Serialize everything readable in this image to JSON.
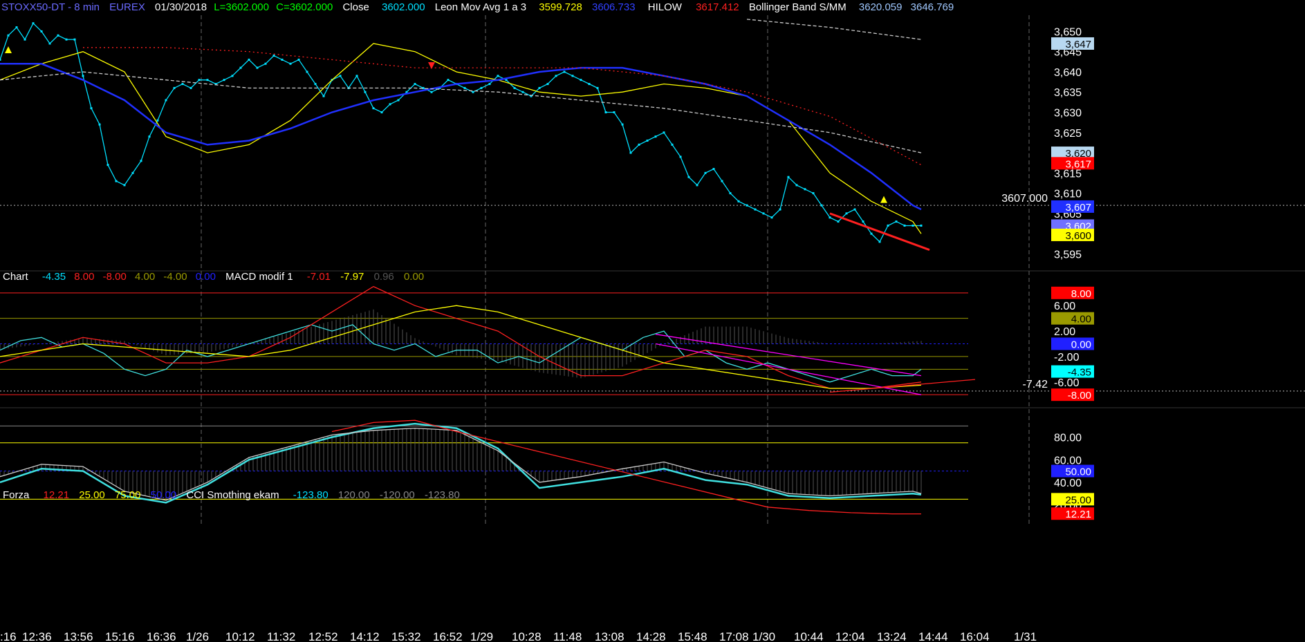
{
  "colors": {
    "bg": "#000000",
    "price": "#00e0ff",
    "priceLine": "#6a6aff",
    "yellow": "#ffff00",
    "blue": "#2030ff",
    "red": "#ff2020",
    "white": "#dddddd",
    "green": "#00ff00",
    "magenta": "#ff00ff",
    "cyan": "#40e0e0",
    "olive": "#9a9a00"
  },
  "price_header": {
    "symbol": "STOXX50-DT - 8 min",
    "exchange": "EUREX",
    "date": "01/30/2018",
    "last": "L=3602.000",
    "close_c": "C=3602.000",
    "close_label": "Close",
    "close_value": "3602.000",
    "ma_label": "Leon Mov Avg 1 a 3",
    "ma_v1": "3599.728",
    "ma_v2": "3606.733",
    "hilow_label": "HILOW",
    "hilow_value": "3617.412",
    "bb_label": "Bollinger Band S/MM",
    "bb_v1": "3620.059",
    "bb_v2": "3646.769"
  },
  "macd_header": {
    "label": "Chart",
    "v1": "-4.35",
    "v2": "8.00",
    "v3": "-8.00",
    "v4": "4.00",
    "v5": "-4.00",
    "v6": "0.00",
    "macd_label": "MACD modif 1",
    "m1": "-7.01",
    "m2": "-7.97",
    "m3": "0.96",
    "m4": "0.00"
  },
  "cci_header": {
    "label": "Forza",
    "v1": "12.21",
    "v2": "25.00",
    "v3": "75.00",
    "v4": "50.00",
    "cci_label": "CCI Smothing ekam",
    "c1": "-123.80",
    "c2": "120.00",
    "c3": "-120.00",
    "c4": "-123.80"
  },
  "price_axis": {
    "ticks": [
      "3,650",
      "3,645",
      "3,640",
      "3,635",
      "3,630",
      "3,625",
      "3,620",
      "3,615",
      "3,610",
      "3,605",
      "3,600",
      "3,595"
    ],
    "tick_values": [
      3650,
      3645,
      3640,
      3635,
      3630,
      3625,
      3620,
      3615,
      3610,
      3605,
      3600,
      3595
    ],
    "ylim": [
      3592,
      3654
    ],
    "markers": [
      {
        "label": "3,647",
        "value": 3647,
        "bg": "#b8d8f0",
        "fg": "#000000"
      },
      {
        "label": "3,620",
        "value": 3620,
        "bg": "#b8d8f0",
        "fg": "#000000"
      },
      {
        "label": "3,617",
        "value": 3617.4,
        "bg": "#ff0000",
        "fg": "#ffffff"
      },
      {
        "label": "3,607",
        "value": 3606.7,
        "bg": "#2030ff",
        "fg": "#ffffff"
      },
      {
        "label": "3,602",
        "value": 3602,
        "bg": "#7070ff",
        "fg": "#ffffff"
      },
      {
        "label": "3,600",
        "value": 3599.7,
        "bg": "#ffff00",
        "fg": "#000000"
      }
    ],
    "cursor_label": "3607.000",
    "cursor_value": 3607
  },
  "macd_axis": {
    "ticks": [
      "8.00",
      "6.00",
      "4.00",
      "2.00",
      "0.00",
      "-2.00",
      "-4.35",
      "-6.00",
      "-8.00"
    ],
    "tick_values": [
      8,
      6,
      4,
      2,
      0,
      -2,
      -4.35,
      -6,
      -8
    ],
    "ylim": [
      -9.5,
      9.5
    ],
    "markers": [
      {
        "label": "8.00",
        "value": 8,
        "bg": "#ff0000",
        "fg": "#ffffff"
      },
      {
        "label": "4.00",
        "value": 4,
        "bg": "#9a9a00",
        "fg": "#000000"
      },
      {
        "label": "0.00",
        "value": 0,
        "bg": "#2020ff",
        "fg": "#ffffff"
      },
      {
        "label": "-4.35",
        "value": -4.35,
        "bg": "#00ffff",
        "fg": "#000000"
      },
      {
        "label": "-8.00",
        "value": -8,
        "bg": "#ff0000",
        "fg": "#ffffff"
      }
    ],
    "cursor_label": "-7.42",
    "cursor_value": -7.42
  },
  "cci_axis": {
    "ticks": [
      "80.00",
      "60.00",
      "40.00",
      "20.00"
    ],
    "tick_values": [
      80,
      60,
      40,
      20
    ],
    "ylim": [
      5,
      100
    ],
    "markers": [
      {
        "label": "50.00",
        "value": 50,
        "bg": "#2020ff",
        "fg": "#ffffff"
      },
      {
        "label": "25.00",
        "value": 25,
        "bg": "#ffff00",
        "fg": "#000000"
      },
      {
        "label": "12.21",
        "value": 12.21,
        "bg": "#ff0000",
        "fg": "#ffffff"
      }
    ]
  },
  "x_axis": {
    "labels": [
      ":16",
      "12:36",
      "13:56",
      "15:16",
      "16:36",
      "1/26",
      "10:12",
      "11:32",
      "12:52",
      "14:12",
      "15:32",
      "16:52",
      "1/29",
      "10:28",
      "11:48",
      "13:08",
      "14:28",
      "15:48",
      "17:08",
      "1/30",
      "10:44",
      "12:04",
      "13:24",
      "14:44",
      "16:04",
      "1/31"
    ],
    "positions": [
      0,
      9,
      19,
      29,
      39,
      48.5,
      58,
      68,
      78,
      88,
      98,
      108,
      117,
      127,
      137,
      147,
      157,
      167,
      177,
      185,
      195,
      205,
      215,
      225,
      235,
      248
    ],
    "day_breaks": [
      48.5,
      117,
      185,
      248
    ],
    "xlim": [
      0,
      250
    ]
  },
  "chart_data": [
    {
      "type": "line",
      "panel": "price",
      "ylim": [
        3592,
        3654
      ],
      "series": [
        {
          "name": "Close",
          "color": "#00e0ff",
          "x": [
            0,
            2,
            4,
            6,
            8,
            10,
            12,
            14,
            16,
            18,
            20,
            22,
            24,
            26,
            28,
            30,
            32,
            34,
            36,
            38,
            40,
            42,
            44,
            46,
            48,
            50,
            52,
            54,
            56,
            58,
            60,
            62,
            64,
            66,
            68,
            70,
            72,
            74,
            76,
            78,
            80,
            82,
            84,
            86,
            88,
            90,
            92,
            94,
            96,
            98,
            100,
            102,
            104,
            106,
            108,
            110,
            112,
            114,
            116,
            118,
            120,
            122,
            124,
            126,
            128,
            130,
            132,
            134,
            136,
            138,
            140,
            142,
            144,
            146,
            148,
            150,
            152,
            154,
            156,
            158,
            160,
            162,
            164,
            166,
            168,
            170,
            172,
            174,
            176,
            178,
            180,
            182,
            184,
            186,
            188,
            190,
            192,
            194,
            196,
            198,
            200,
            202,
            204,
            206,
            208,
            210,
            212,
            214,
            216,
            218,
            220,
            222
          ],
          "y": [
            3643,
            3649,
            3651,
            3648,
            3652,
            3650,
            3647,
            3649,
            3648,
            3648,
            3639,
            3631,
            3627,
            3617,
            3613,
            3612,
            3615,
            3618,
            3624,
            3628,
            3633,
            3636,
            3637,
            3636,
            3638,
            3638,
            3637,
            3638,
            3639,
            3641,
            3643,
            3641,
            3642,
            3644,
            3643,
            3642,
            3643,
            3640,
            3637,
            3634,
            3638,
            3639,
            3636,
            3639,
            3635,
            3631,
            3630,
            3632,
            3633,
            3635,
            3637,
            3636,
            3635,
            3636,
            3638,
            3637,
            3636,
            3635,
            3636,
            3637,
            3639,
            3638,
            3636,
            3635,
            3634,
            3636,
            3637,
            3639,
            3640,
            3639,
            3638,
            3637,
            3636,
            3630,
            3630,
            3627,
            3620,
            3622,
            3623,
            3624,
            3625,
            3622,
            3619,
            3614,
            3612,
            3615,
            3616,
            3613,
            3610,
            3608,
            3607,
            3606,
            3605,
            3604,
            3606,
            3614,
            3612,
            3611,
            3610,
            3607,
            3604,
            3603,
            3605,
            3606,
            3603,
            3600,
            3598,
            3602,
            3603,
            3602,
            3602,
            3602
          ]
        },
        {
          "name": "Leon Mov Avg 1 a 3",
          "color": "#ffff00",
          "x": [
            0,
            10,
            20,
            30,
            40,
            50,
            60,
            70,
            80,
            90,
            100,
            110,
            120,
            130,
            140,
            150,
            160,
            170,
            180,
            190,
            200,
            210,
            220,
            222
          ],
          "y": [
            3638,
            3642,
            3645,
            3640,
            3624,
            3620,
            3622,
            3628,
            3638,
            3647,
            3645,
            3640,
            3638,
            3635,
            3634,
            3635,
            3637,
            3636,
            3634,
            3628,
            3615,
            3608,
            3603,
            3600
          ]
        },
        {
          "name": "HILOW",
          "color": "#2030ff",
          "x": [
            0,
            10,
            20,
            30,
            40,
            50,
            60,
            70,
            80,
            90,
            100,
            110,
            120,
            130,
            140,
            150,
            160,
            170,
            180,
            190,
            200,
            210,
            220,
            222
          ],
          "y": [
            3642,
            3642,
            3638,
            3633,
            3625,
            3622,
            3623,
            3626,
            3630,
            3633,
            3635,
            3637,
            3638,
            3640,
            3641,
            3641,
            3639,
            3637,
            3634,
            3628,
            3622,
            3615,
            3607,
            3606
          ]
        },
        {
          "name": "Bollinger Band S/MM",
          "color": "#ff2020",
          "x": [
            20,
            40,
            60,
            80,
            100,
            120,
            140,
            160,
            180,
            200,
            222
          ],
          "y": [
            3646,
            3646,
            3645,
            3643,
            3641,
            3641,
            3641,
            3639,
            3635,
            3629,
            3617
          ]
        },
        {
          "name": "Bollinger Band S/MM",
          "color": "#cccccc",
          "x": [
            0,
            20,
            40,
            60,
            80,
            100,
            120,
            140,
            160,
            180,
            200,
            222
          ],
          "y": [
            3638,
            3640,
            3638,
            3636,
            3636,
            3636,
            3635,
            3633,
            3631,
            3628,
            3625,
            3620
          ]
        },
        {
          "name": "",
          "color": "#cccccc",
          "x": [
            180,
            200,
            222
          ],
          "y": [
            3653,
            3651,
            3648
          ]
        }
      ]
    },
    {
      "type": "line",
      "panel": "macd",
      "ylim": [
        -9.5,
        9.5
      ],
      "series": [
        {
          "name": "Chart",
          "color": "#40e0e0",
          "x": [
            0,
            5,
            10,
            15,
            20,
            25,
            30,
            35,
            40,
            45,
            50,
            55,
            60,
            65,
            70,
            75,
            80,
            85,
            90,
            95,
            100,
            105,
            110,
            115,
            120,
            125,
            130,
            135,
            140,
            145,
            150,
            155,
            160,
            165,
            170,
            175,
            180,
            185,
            190,
            195,
            200,
            205,
            210,
            215,
            220,
            222
          ],
          "y": [
            -1,
            0.5,
            1,
            -0.5,
            0,
            -1.5,
            -4,
            -5,
            -4,
            -1,
            -2,
            -1,
            0,
            1,
            2,
            3,
            2,
            3,
            0,
            -1,
            0,
            -2,
            -1,
            -1,
            -3,
            -2,
            -3,
            -1,
            1,
            0,
            -1,
            1,
            2,
            -2,
            -1,
            -3,
            -4,
            -3,
            -4,
            -5,
            -6,
            -5,
            -4,
            -5,
            -5,
            -4
          ]
        },
        {
          "name": "MACD modif 1",
          "color": "#ff2020",
          "x": [
            0,
            10,
            20,
            30,
            40,
            50,
            60,
            70,
            80,
            90,
            100,
            110,
            120,
            130,
            140,
            150,
            160,
            170,
            180,
            190,
            200,
            210,
            222
          ],
          "y": [
            -3,
            -1,
            1,
            0,
            -3,
            -3,
            -2,
            1,
            5,
            9,
            6,
            4,
            2,
            -2,
            -5,
            -5,
            -3,
            -1,
            -2,
            -5,
            -7,
            -7,
            -6
          ]
        },
        {
          "name": "MACD modif 1",
          "color": "#ffff00",
          "x": [
            0,
            10,
            20,
            30,
            40,
            50,
            60,
            70,
            80,
            90,
            100,
            110,
            120,
            130,
            140,
            150,
            160,
            170,
            180,
            190,
            200,
            210,
            222
          ],
          "y": [
            -2,
            -1,
            0,
            -0.5,
            -1,
            -1.5,
            -2,
            -1,
            1,
            3,
            5,
            6,
            5,
            3,
            1,
            -1,
            -3,
            -4,
            -5,
            -6,
            -7,
            -7,
            -6.5
          ]
        },
        {
          "name": "",
          "color": "#ff00ff",
          "x": [
            158,
            222
          ],
          "y": [
            1.5,
            -5
          ]
        },
        {
          "name": "",
          "color": "#ff00ff",
          "x": [
            158,
            222
          ],
          "y": [
            0,
            -8
          ]
        },
        {
          "name": "",
          "color": "#ff2020",
          "x": [
            200,
            235
          ],
          "y": [
            -7.6,
            -5.6
          ]
        }
      ]
    },
    {
      "type": "line",
      "panel": "cci",
      "ylim": [
        5,
        100
      ],
      "series": [
        {
          "name": "CCI Smothing ekam",
          "color": "#40e0e0",
          "x": [
            0,
            10,
            20,
            30,
            40,
            50,
            60,
            70,
            80,
            90,
            100,
            110,
            120,
            130,
            140,
            150,
            160,
            170,
            180,
            190,
            200,
            210,
            220,
            222
          ],
          "y": [
            40,
            52,
            50,
            28,
            22,
            38,
            60,
            70,
            80,
            88,
            92,
            88,
            70,
            35,
            40,
            45,
            52,
            42,
            38,
            28,
            26,
            28,
            30,
            29
          ]
        },
        {
          "name": "",
          "color": "#cccccc",
          "x": [
            0,
            10,
            20,
            30,
            40,
            50,
            60,
            70,
            80,
            90,
            100,
            110,
            120,
            130,
            140,
            150,
            160,
            170,
            180,
            190,
            200,
            210,
            220,
            222
          ],
          "y": [
            45,
            56,
            54,
            32,
            24,
            40,
            62,
            72,
            82,
            86,
            88,
            86,
            68,
            40,
            45,
            52,
            58,
            48,
            40,
            30,
            28,
            30,
            32,
            30
          ]
        },
        {
          "name": "Forza",
          "color": "#ff2020",
          "x": [
            80,
            90,
            100,
            110,
            185,
            195,
            205,
            215,
            222
          ],
          "y": [
            85,
            93,
            95,
            85,
            18,
            15,
            13,
            12,
            12
          ]
        }
      ]
    }
  ]
}
